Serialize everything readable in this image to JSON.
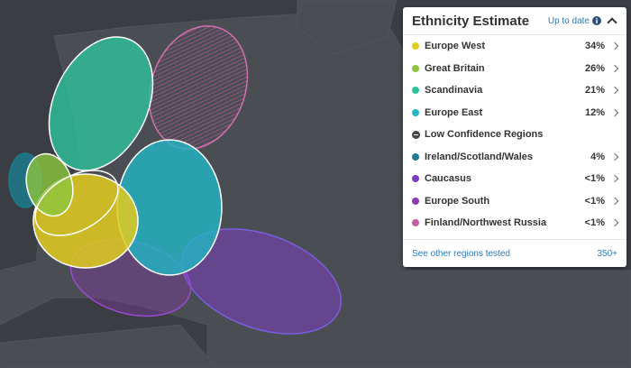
{
  "header": {
    "title": "Ethnicity Estimate",
    "status": "Up to date"
  },
  "regions": [
    {
      "name": "Europe West",
      "percent": "34%",
      "color": "#e2cc1e"
    },
    {
      "name": "Great Britain",
      "percent": "26%",
      "color": "#8cc63f"
    },
    {
      "name": "Scandinavia",
      "percent": "21%",
      "color": "#2ec39c"
    },
    {
      "name": "Europe East",
      "percent": "12%",
      "color": "#22b6c6"
    }
  ],
  "low_confidence": {
    "title": "Low Confidence Regions",
    "regions": [
      {
        "name": "Ireland/Scotland/Wales",
        "percent": "4%",
        "color": "#1b7d8f"
      },
      {
        "name": "Caucasus",
        "percent": "<1%",
        "color": "#7a3fc0"
      },
      {
        "name": "Europe South",
        "percent": "<1%",
        "color": "#8c3ab6"
      },
      {
        "name": "Finland/Northwest Russia",
        "percent": "<1%",
        "color": "#c85aa6"
      }
    ]
  },
  "footer": {
    "link": "See other regions tested",
    "count": "350+"
  }
}
